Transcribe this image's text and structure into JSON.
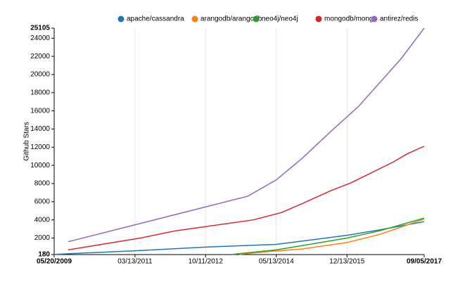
{
  "chart_data": {
    "type": "line",
    "y_label": "Github Stars",
    "xlim": [
      "05/20/2009",
      "09/05/2017"
    ],
    "xticks": [
      "05/20/2009",
      "03/13/2011",
      "10/11/2012",
      "05/13/2014",
      "12/13/2015",
      "09/05/2017"
    ],
    "ylim": [
      180,
      25105
    ],
    "yticks": [
      180,
      2000,
      4000,
      6000,
      8000,
      10000,
      12000,
      14000,
      16000,
      18000,
      20000,
      22000,
      24000,
      25105
    ],
    "grid": true,
    "legend": "top",
    "series": [
      {
        "name": "apache/cassandra",
        "color": "#1f77b4",
        "x": [
          "05/20/2009",
          "03/13/2011",
          "10/11/2012",
          "05/13/2014",
          "12/13/2015",
          "09/06/2016",
          "09/05/2017"
        ],
        "values": [
          200,
          600,
          1000,
          1300,
          2300,
          2900,
          3800
        ]
      },
      {
        "name": "arangodb/arangodb",
        "color": "#ff7f0e",
        "x": [
          "07/13/2013",
          "02/28/2014",
          "12/13/2014",
          "12/13/2015",
          "09/06/2016",
          "02/26/2017",
          "09/05/2017"
        ],
        "values": [
          200,
          500,
          800,
          1500,
          2400,
          3200,
          4100
        ]
      },
      {
        "name": "neo4j/neo4j",
        "color": "#2ca02c",
        "x": [
          "05/16/2013",
          "05/13/2014",
          "02/09/2015",
          "12/13/2015",
          "09/06/2016",
          "09/05/2017"
        ],
        "values": [
          200,
          700,
          1300,
          2000,
          2800,
          4200
        ]
      },
      {
        "name": "mongodb/mongo",
        "color": "#d62728",
        "x": [
          "09/12/2009",
          "04/26/2011",
          "02/09/2012",
          "11/05/2013",
          "06/23/2014",
          "12/13/2014",
          "07/31/2015",
          "01/19/2016",
          "12/30/2016",
          "04/24/2017",
          "09/05/2017"
        ],
        "values": [
          700,
          2000,
          2800,
          4000,
          4800,
          5800,
          7200,
          8100,
          10400,
          11300,
          12100
        ]
      },
      {
        "name": "antirez/redis",
        "color": "#9467bd",
        "x": [
          "09/12/2009",
          "09/20/2013",
          "05/13/2014",
          "12/13/2014",
          "07/31/2015",
          "03/17/2016",
          "02/26/2017",
          "09/05/2017"
        ],
        "values": [
          1600,
          6600,
          8400,
          10800,
          13700,
          16500,
          21700,
          25105
        ]
      }
    ]
  }
}
